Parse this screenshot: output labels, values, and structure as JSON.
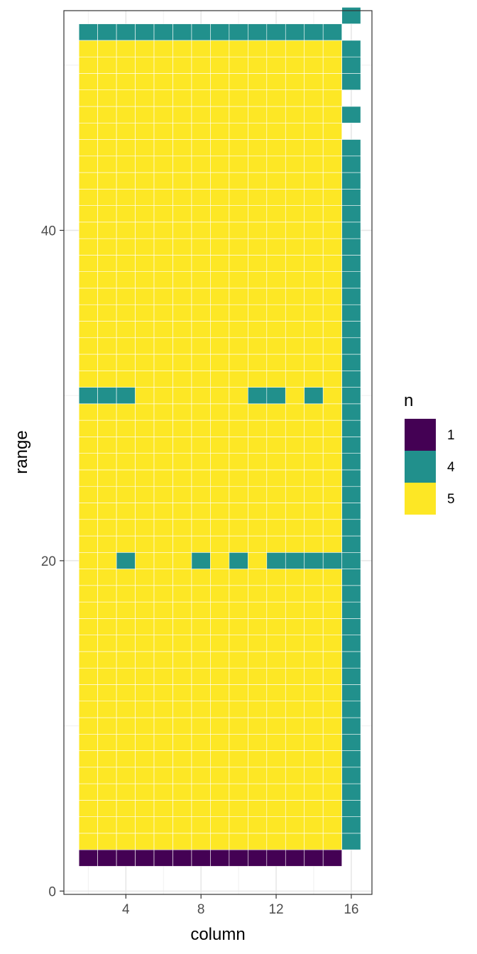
{
  "chart_data": {
    "type": "heatmap",
    "xlabel": "column",
    "ylabel": "range",
    "xlim": [
      0.7,
      17.1
    ],
    "ylim": [
      -0.2,
      53.3
    ],
    "x_ticks": [
      4,
      8,
      12,
      16
    ],
    "y_ticks": [
      0,
      20,
      40
    ],
    "grid": true,
    "legend": {
      "title": "n",
      "placement": "right",
      "entries": [
        {
          "label": "1",
          "value": 1,
          "color": "#440154"
        },
        {
          "label": "4",
          "value": 4,
          "color": "#21908C"
        },
        {
          "label": "5",
          "value": 5,
          "color": "#FDE725"
        }
      ]
    },
    "columns": [
      2,
      3,
      4,
      5,
      6,
      7,
      8,
      9,
      10,
      11,
      12,
      13,
      14,
      15,
      16
    ],
    "row_min": 2,
    "row_max": 52,
    "default_value": 5,
    "cells": [
      {
        "row": 2,
        "columns": [
          2,
          3,
          4,
          5,
          6,
          7,
          8,
          9,
          10,
          11,
          12,
          13,
          14,
          15
        ],
        "value": 1
      },
      {
        "row": 20,
        "columns": [
          4,
          8,
          10,
          12,
          13,
          14,
          15
        ],
        "value": 4
      },
      {
        "row": 30,
        "columns": [
          2,
          3,
          4,
          11,
          12,
          14
        ],
        "value": 4
      },
      {
        "row": 52,
        "columns": [
          2,
          3,
          4,
          5,
          6,
          7,
          8,
          9,
          10,
          11,
          12,
          13,
          14,
          15
        ],
        "value": 4
      }
    ],
    "column_16": {
      "value": 4,
      "present_rows": [
        [
          3,
          45
        ],
        [
          47,
          47
        ],
        [
          49,
          51
        ],
        [
          53,
          53
        ]
      ]
    }
  }
}
